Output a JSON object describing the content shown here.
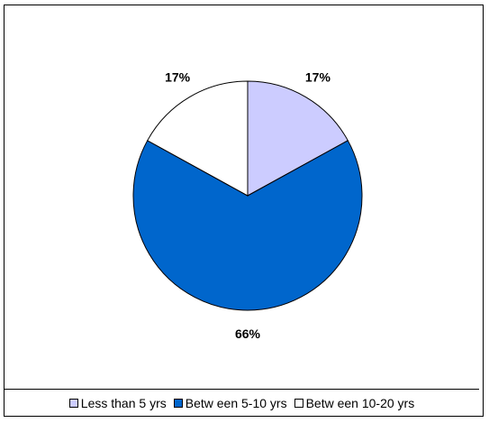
{
  "chart_data": {
    "type": "pie",
    "categories": [
      "Less than 5 yrs",
      "Betw een 5-10 yrs",
      "Betw een 10-20 yrs"
    ],
    "values": [
      17,
      66,
      17
    ],
    "labels": [
      "17%",
      "66%",
      "17%"
    ],
    "colors": [
      "#ccccff",
      "#0066cc",
      "#ffffff"
    ],
    "legend_position": "bottom"
  }
}
